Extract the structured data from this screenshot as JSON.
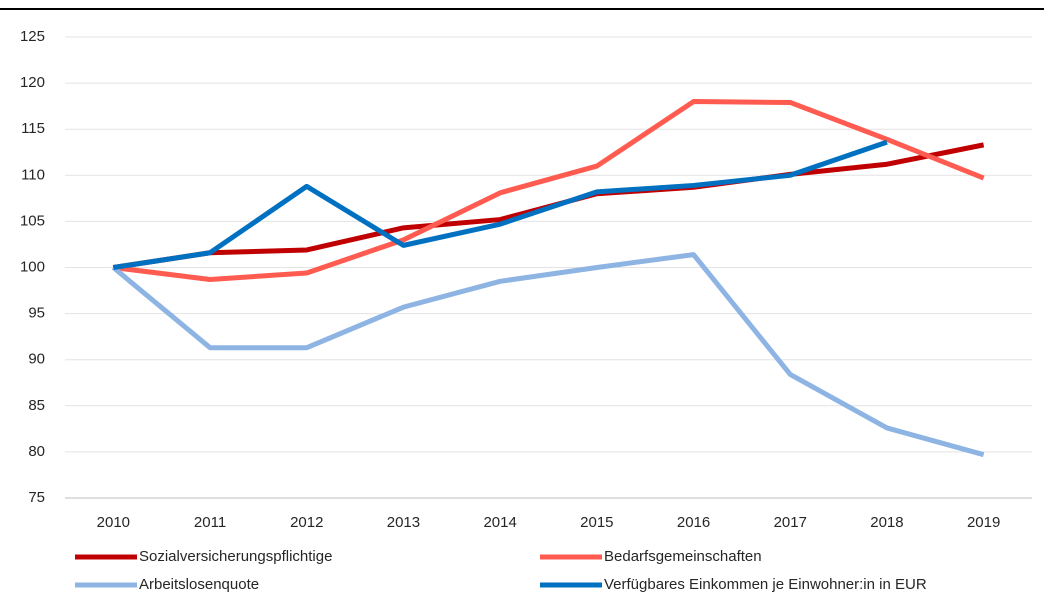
{
  "chart_data": {
    "type": "line",
    "categories": [
      "2010",
      "2011",
      "2012",
      "2013",
      "2014",
      "2015",
      "2016",
      "2017",
      "2018",
      "2019"
    ],
    "series": [
      {
        "name": "Sozialversicherungspflichtige",
        "color": "#c00000",
        "values": [
          100,
          101.6,
          101.9,
          104.3,
          105.2,
          108.0,
          108.7,
          110.1,
          111.2,
          113.3
        ]
      },
      {
        "name": "Bedarfsgemeinschaften",
        "color": "#ff5b50",
        "values": [
          100,
          98.7,
          99.4,
          103.0,
          108.1,
          111.0,
          118.0,
          117.9,
          113.9,
          109.7
        ]
      },
      {
        "name": "Arbeitslosenquote",
        "color": "#8eb4e3",
        "values": [
          100,
          91.3,
          91.3,
          95.7,
          98.5,
          100.0,
          101.4,
          88.4,
          82.6,
          79.7
        ]
      },
      {
        "name": "Verfügbares Einkommen je Einwohner:in in EUR",
        "color": "#0070c0",
        "values": [
          100,
          101.6,
          108.8,
          102.4,
          104.7,
          108.2,
          108.9,
          110.0,
          113.6,
          null
        ]
      }
    ],
    "ylim": [
      75,
      125
    ],
    "yticks": [
      75,
      80,
      85,
      90,
      95,
      100,
      105,
      110,
      115,
      120,
      125
    ],
    "grid": true,
    "legend": "bottom"
  }
}
